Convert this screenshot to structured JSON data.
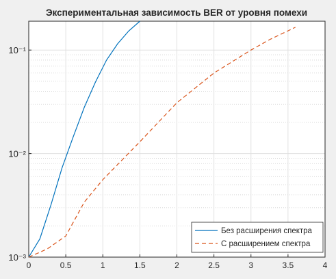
{
  "chart_data": {
    "type": "line",
    "title": "Экспериментальная зависимость BER от уровня помехи",
    "series": [
      {
        "name": "Без расширения спектра",
        "color": "#0072bd",
        "dash": "solid",
        "x": [
          0,
          0.15,
          0.3,
          0.45,
          0.6,
          0.75,
          0.9,
          1.05,
          1.2,
          1.35,
          1.5
        ],
        "values": [
          0.001,
          0.0015,
          0.0032,
          0.0073,
          0.0145,
          0.028,
          0.049,
          0.08,
          0.115,
          0.153,
          0.19
        ]
      },
      {
        "name": "С расширением спектра",
        "color": "#d95319",
        "dash": "dashed",
        "x": [
          0,
          0.25,
          0.5,
          0.75,
          1.0,
          1.5,
          2.0,
          2.5,
          3.0,
          3.25,
          3.6
        ],
        "values": [
          0.001,
          0.0012,
          0.0016,
          0.0034,
          0.0056,
          0.013,
          0.031,
          0.06,
          0.1,
          0.126,
          0.166
        ]
      }
    ],
    "xlim": [
      0,
      4
    ],
    "xticks": [
      0,
      0.5,
      1,
      1.5,
      2,
      2.5,
      3,
      3.5,
      4
    ],
    "ylim": [
      0.001,
      0.19
    ],
    "log_y": true,
    "yticks": [
      {
        "value": 0.001,
        "label": "10⁻³"
      },
      {
        "value": 0.01,
        "label": "10⁻²"
      },
      {
        "value": 0.1,
        "label": "10⁻¹"
      }
    ],
    "grid": true,
    "minor_grid": true,
    "legend": "lower-right"
  }
}
